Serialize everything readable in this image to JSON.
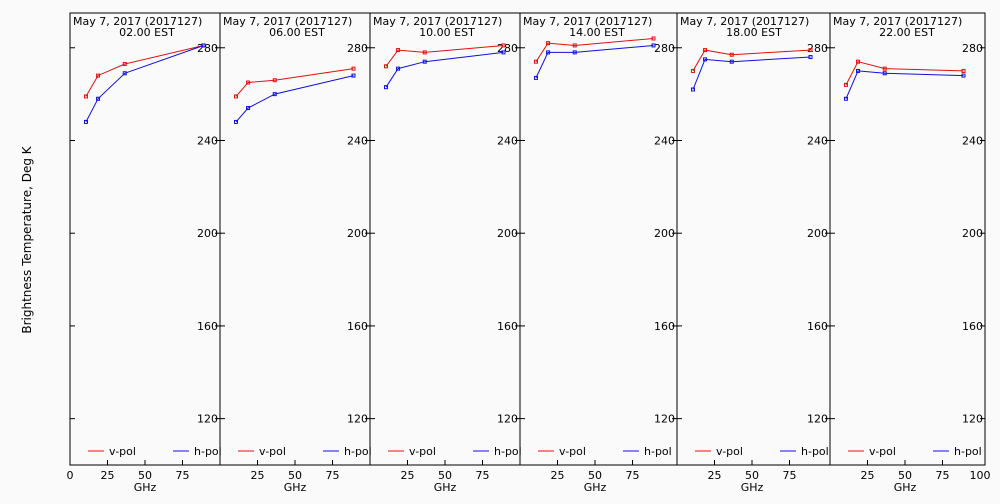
{
  "figure": {
    "ylabel": "Brightness Temperature, Deg K",
    "xlabel": "GHz"
  },
  "chart_data": {
    "type": "line",
    "ylim": [
      100,
      295
    ],
    "xlim": [
      0,
      100
    ],
    "xticks": [
      0,
      25,
      50,
      75,
      100
    ],
    "yticks": [
      120,
      160,
      200,
      240,
      280
    ],
    "x": [
      10.65,
      18.7,
      36.5,
      89
    ],
    "series_meta": [
      {
        "name": "v-pol",
        "color": "#e01010"
      },
      {
        "name": "h-pol",
        "color": "#1010e0"
      }
    ],
    "panels": [
      {
        "title": "May  7, 2017 (2017127)",
        "subtitle": "02.00 EST",
        "series": [
          {
            "name": "v-pol",
            "values": [
              259,
              268,
              273,
              281
            ]
          },
          {
            "name": "h-pol",
            "values": [
              248,
              258,
              269,
              281
            ]
          }
        ]
      },
      {
        "title": "May  7, 2017 (2017127)",
        "subtitle": "06.00 EST",
        "series": [
          {
            "name": "v-pol",
            "values": [
              259,
              265,
              266,
              271
            ]
          },
          {
            "name": "h-pol",
            "values": [
              248,
              254,
              260,
              268
            ]
          }
        ]
      },
      {
        "title": "May  7, 2017 (2017127)",
        "subtitle": "10.00 EST",
        "series": [
          {
            "name": "v-pol",
            "values": [
              272,
              279,
              278,
              281
            ]
          },
          {
            "name": "h-pol",
            "values": [
              263,
              271,
              274,
              278
            ]
          }
        ]
      },
      {
        "title": "May  7, 2017 (2017127)",
        "subtitle": "14.00 EST",
        "series": [
          {
            "name": "v-pol",
            "values": [
              274,
              282,
              281,
              284
            ]
          },
          {
            "name": "h-pol",
            "values": [
              267,
              278,
              278,
              281
            ]
          }
        ]
      },
      {
        "title": "May  7, 2017 (2017127)",
        "subtitle": "18.00 EST",
        "series": [
          {
            "name": "v-pol",
            "values": [
              270,
              279,
              277,
              279
            ]
          },
          {
            "name": "h-pol",
            "values": [
              262,
              275,
              274,
              276
            ]
          }
        ]
      },
      {
        "title": "May  7, 2017 (2017127)",
        "subtitle": "22.00 EST",
        "series": [
          {
            "name": "v-pol",
            "values": [
              264,
              274,
              271,
              270
            ]
          },
          {
            "name": "h-pol",
            "values": [
              258,
              270,
              269,
              268
            ]
          }
        ]
      }
    ]
  }
}
